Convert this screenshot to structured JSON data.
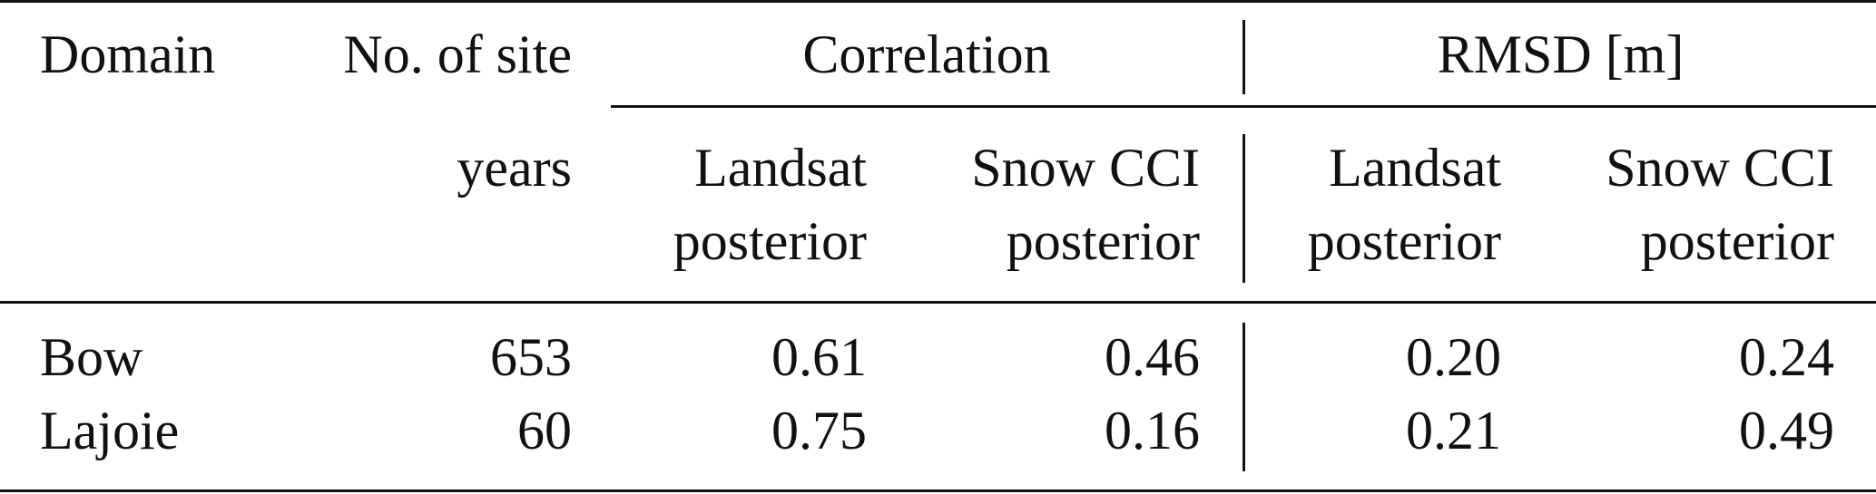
{
  "table": {
    "header": {
      "domain": "Domain",
      "no_of_site": "No. of site",
      "years": "years",
      "correlation": "Correlation",
      "rmsd": "RMSD [m]",
      "landsat": "Landsat",
      "posterior": "posterior",
      "snow_cci": "Snow CCI"
    },
    "rows": [
      {
        "domain": "Bow",
        "site_years": "653",
        "corr_landsat": "0.61",
        "corr_snowcci": "0.46",
        "rmsd_landsat": "0.20",
        "rmsd_snowcci": "0.24"
      },
      {
        "domain": "Lajoie",
        "site_years": "60",
        "corr_landsat": "0.75",
        "corr_snowcci": "0.16",
        "rmsd_landsat": "0.21",
        "rmsd_snowcci": "0.49"
      }
    ]
  }
}
